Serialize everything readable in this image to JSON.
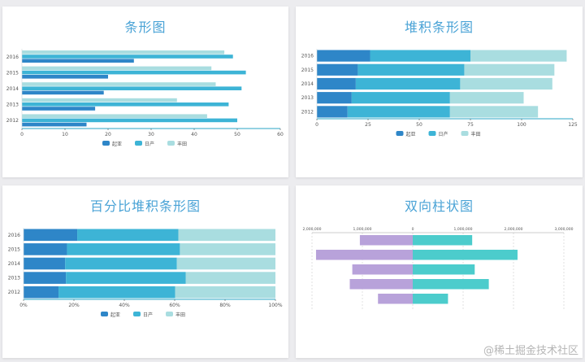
{
  "watermark": "@稀土掘金技术社区",
  "colors": {
    "title": "#4aa3d6",
    "series": [
      "#2e86c8",
      "#3db4d6",
      "#a9dde0"
    ],
    "diverging": [
      "#b8a2da",
      "#4ccccc"
    ],
    "axis": "#555555",
    "baseline": "#2aa6c5",
    "grid": "#e6e6e6"
  },
  "chart_data": [
    {
      "type": "bar",
      "orientation": "horizontal",
      "title": "条形图",
      "categories": [
        "2012",
        "2013",
        "2014",
        "2015",
        "2016"
      ],
      "series": [
        {
          "name": "起亚",
          "values": [
            15,
            17,
            19,
            20,
            26
          ]
        },
        {
          "name": "日产",
          "values": [
            50,
            48,
            51,
            52,
            49
          ]
        },
        {
          "name": "丰田",
          "values": [
            43,
            36,
            45,
            44,
            47
          ]
        }
      ],
      "xlim": [
        0,
        60
      ],
      "xticks": [
        0,
        10,
        20,
        30,
        40,
        50,
        60
      ],
      "legend": "bottom",
      "grid": false
    },
    {
      "type": "bar",
      "orientation": "horizontal",
      "stacked": true,
      "title": "堆积条形图",
      "categories": [
        "2012",
        "2013",
        "2014",
        "2015",
        "2016"
      ],
      "series": [
        {
          "name": "起亚",
          "values": [
            15,
            17,
            19,
            20,
            26
          ]
        },
        {
          "name": "日产",
          "values": [
            50,
            48,
            51,
            52,
            49
          ]
        },
        {
          "name": "丰田",
          "values": [
            43,
            36,
            45,
            44,
            47
          ]
        }
      ],
      "xlim": [
        0,
        125
      ],
      "xticks": [
        0,
        25,
        50,
        75,
        100,
        125
      ],
      "legend": "bottom",
      "grid": false
    },
    {
      "type": "bar",
      "orientation": "horizontal",
      "stacked": true,
      "percent": true,
      "title": "百分比堆积条形图",
      "categories": [
        "2012",
        "2013",
        "2014",
        "2015",
        "2016"
      ],
      "series": [
        {
          "name": "起亚",
          "values": [
            15,
            17,
            19,
            20,
            26
          ]
        },
        {
          "name": "日产",
          "values": [
            50,
            48,
            51,
            52,
            49
          ]
        },
        {
          "name": "丰田",
          "values": [
            43,
            36,
            45,
            44,
            47
          ]
        }
      ],
      "xticks": [
        "0%",
        "20%",
        "40%",
        "60%",
        "80%",
        "100%"
      ],
      "legend": "bottom",
      "grid": false
    },
    {
      "type": "bar",
      "orientation": "horizontal",
      "diverging": true,
      "title": "双向柱状图",
      "rows": [
        {
          "left": -1050000,
          "right": 1180000
        },
        {
          "left": -1920000,
          "right": 2080000
        },
        {
          "left": -1200000,
          "right": 1230000
        },
        {
          "left": -1250000,
          "right": 1510000
        },
        {
          "left": -690000,
          "right": 700000
        }
      ],
      "xlim": [
        -2000000,
        3000000
      ],
      "xticks": [
        -2000000,
        -1000000,
        0,
        1000000,
        2000000,
        3000000
      ],
      "xticklabels": [
        "2,000,000",
        "1,000,000",
        "0",
        "1,000,000",
        "2,000,000",
        "3,000,000"
      ],
      "grid": true
    }
  ]
}
